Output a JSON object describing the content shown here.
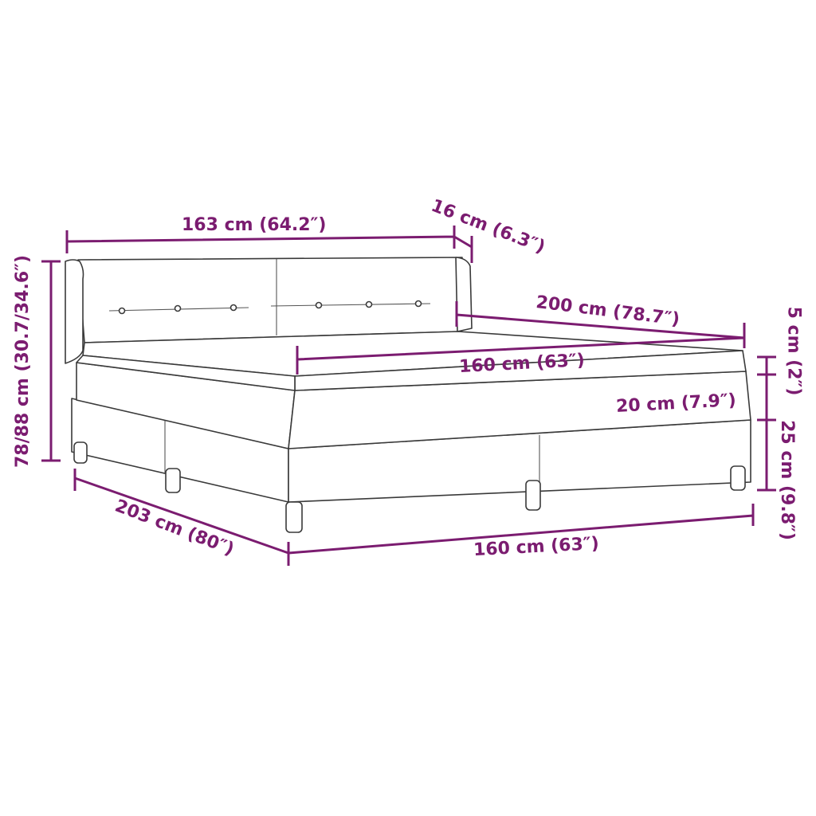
{
  "colors": {
    "dimension": "#7b1c70",
    "outline": "#3a3a3a"
  },
  "dimensions": {
    "headboard_width": "163 cm (64.2″)",
    "headboard_depth": "16 cm (6.3″)",
    "length": "200 cm (78.7″)",
    "mattress_width": "160 cm (63″)",
    "mattress_height": "20 cm (7.9″)",
    "topper_height": "5 cm (2″)",
    "base_height": "25 cm (9.8″)",
    "total_height": "78/88 cm (30.7/34.6″)",
    "total_length": "203 cm (80″)",
    "base_width": "160 cm (63″)"
  }
}
